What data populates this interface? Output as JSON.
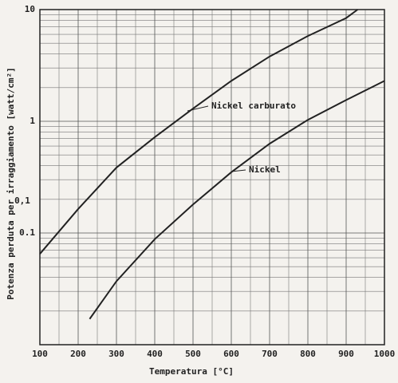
{
  "chart_data": {
    "type": "line",
    "xlabel": "Temperatura [°C]",
    "ylabel": "Potenza perduta per irraggiamento [watt/cm²]",
    "log_y": true,
    "grid": true,
    "xlim": [
      100,
      1000
    ],
    "xticks": [
      100,
      200,
      300,
      400,
      500,
      600,
      700,
      800,
      900,
      1000
    ],
    "ylim": [
      0.01,
      10
    ],
    "yticks": [
      {
        "value": 10,
        "label": "10"
      },
      {
        "value": 1,
        "label": "1"
      },
      {
        "value": 0.1,
        "label": "0.1"
      }
    ],
    "annotations": [
      "0,1"
    ],
    "series": [
      {
        "name": "Nickel carburato",
        "color": "#222",
        "x": [
          100,
          200,
          300,
          400,
          500,
          600,
          700,
          800,
          900,
          930
        ],
        "values": [
          0.065,
          0.164,
          0.385,
          0.72,
          1.3,
          2.3,
          3.8,
          5.8,
          8.4,
          10
        ]
      },
      {
        "name": "Nickel",
        "color": "#222",
        "x": [
          230,
          300,
          400,
          500,
          600,
          700,
          800,
          900,
          1000
        ],
        "values": [
          0.017,
          0.037,
          0.088,
          0.18,
          0.35,
          0.63,
          1.03,
          1.55,
          2.3
        ]
      }
    ]
  }
}
